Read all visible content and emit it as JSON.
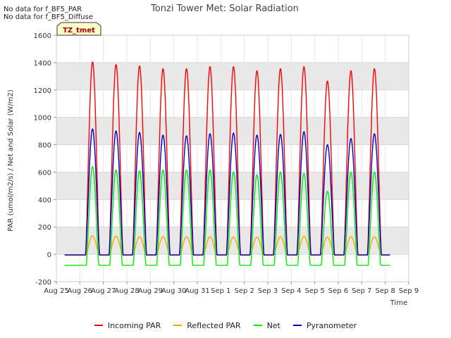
{
  "notes": [
    "No data for f_BF5_PAR",
    "No data for f_BF5_Diffuse"
  ],
  "badge": "TZ_tmet",
  "colors": {
    "background_band": "#e8e8e8",
    "badge_fill": "#ffffcc",
    "badge_text": "#aa0000"
  },
  "chart_data": {
    "type": "line",
    "title": "Tonzi Tower Met: Solar Radiation",
    "xlabel": "Time",
    "ylabel": "PAR (umol/m2/s) / Net and Solar (W/m2)",
    "ylim": [
      -200,
      1600
    ],
    "yticks": [
      -200,
      0,
      200,
      400,
      600,
      800,
      1000,
      1200,
      1400,
      1600
    ],
    "xlim": [
      0,
      15
    ],
    "xtick_labels": [
      "Aug 25",
      "Aug 26",
      "Aug 27",
      "Aug 28",
      "Aug 29",
      "Aug 30",
      "Aug 31",
      "Sep 1",
      "Sep 2",
      "Sep 3",
      "Sep 4",
      "Sep 5",
      "Sep 6",
      "Sep 7",
      "Sep 8",
      "Sep 9"
    ],
    "x_units": "days since Aug 25 00:00",
    "grid": true,
    "legend_position": "bottom",
    "series": [
      {
        "name": "Incoming PAR",
        "color": "#ff0000",
        "daily_peaks": [
          1405,
          1385,
          1375,
          1355,
          1355,
          1370,
          1370,
          1340,
          1355,
          1370,
          1265,
          1340,
          1355,
          1350
        ],
        "night_value": -5
      },
      {
        "name": "Reflected PAR",
        "color": "#ffa500",
        "daily_peaks": [
          135,
          132,
          128,
          128,
          128,
          128,
          125,
          125,
          128,
          132,
          125,
          128,
          128,
          128
        ],
        "night_value": -3
      },
      {
        "name": "Net",
        "color": "#00ee00",
        "daily_peaks": [
          640,
          615,
          610,
          615,
          615,
          615,
          600,
          580,
          600,
          590,
          460,
          600,
          600,
          600
        ],
        "night_value": -80
      },
      {
        "name": "Pyranometer",
        "color": "#0000cc",
        "daily_peaks": [
          915,
          900,
          890,
          870,
          865,
          880,
          885,
          870,
          875,
          895,
          800,
          845,
          880,
          875
        ],
        "night_value": -5
      }
    ]
  }
}
